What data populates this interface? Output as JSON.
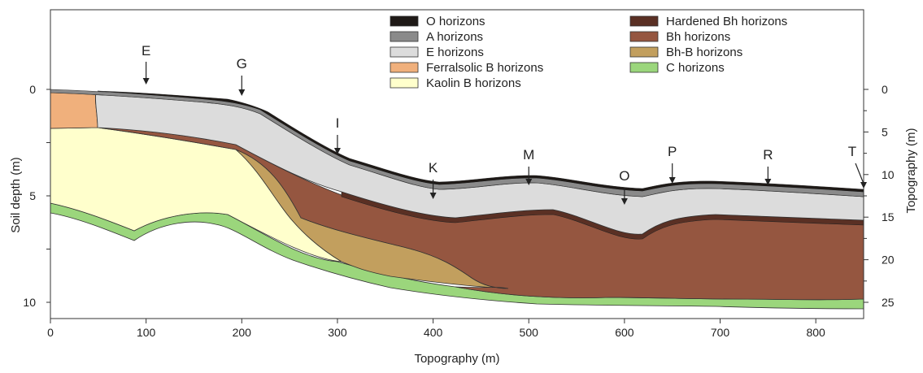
{
  "x_axis": {
    "label": "Topography (m)",
    "min": 0,
    "max": 850,
    "ticks": [
      0,
      100,
      200,
      300,
      400,
      500,
      600,
      700,
      800
    ]
  },
  "y_axis_left": {
    "label": "Soil depth (m)",
    "ticks": [
      0,
      5,
      10
    ]
  },
  "y_axis_right": {
    "label": "Topography (m)",
    "ticks": [
      0,
      5,
      10,
      15,
      20,
      25
    ]
  },
  "legend": [
    {
      "label": "O horizons",
      "color": "#1f1a17"
    },
    {
      "label": "A horizons",
      "color": "#8a8a8a"
    },
    {
      "label": "E horizons",
      "color": "#dcdcdc"
    },
    {
      "label": "Ferralsolic B horizons",
      "color": "#f0b07c"
    },
    {
      "label": "Kaolin B horizons",
      "color": "#ffffcc"
    },
    {
      "label": "Hardened Bh horizons",
      "color": "#5a3024"
    },
    {
      "label": "Bh horizons",
      "color": "#955640"
    },
    {
      "label": "Bh-B horizons",
      "color": "#c29f5e"
    },
    {
      "label": "C horizons",
      "color": "#9bd67c"
    }
  ],
  "profile_markers": [
    {
      "label": "E",
      "x": 100
    },
    {
      "label": "G",
      "x": 200
    },
    {
      "label": "I",
      "x": 300
    },
    {
      "label": "K",
      "x": 400
    },
    {
      "label": "M",
      "x": 500
    },
    {
      "label": "O",
      "x": 600
    },
    {
      "label": "P",
      "x": 650
    },
    {
      "label": "R",
      "x": 750
    },
    {
      "label": "T",
      "x": 850
    }
  ],
  "colors": {
    "o": "#1f1a17",
    "a": "#8a8a8a",
    "e": "#dcdcdc",
    "ferralsolic": "#f0b07c",
    "kaolin": "#ffffcc",
    "hardened_bh": "#5a3024",
    "bh": "#955640",
    "bh_b": "#c29f5e",
    "c": "#9bd67c"
  }
}
